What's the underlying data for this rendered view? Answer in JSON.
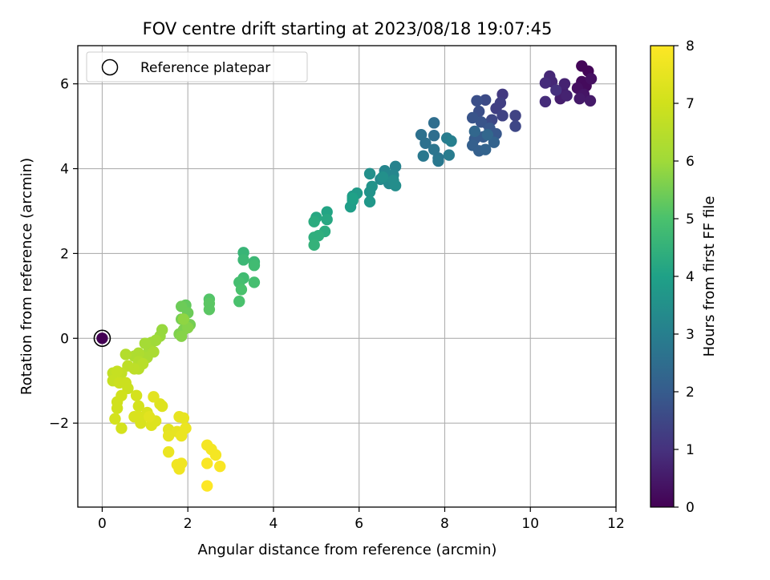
{
  "chart_data": {
    "type": "scatter",
    "title": "FOV centre drift starting at 2023/08/18 19:07:45",
    "xlabel": "Angular distance from reference (arcmin)",
    "ylabel": "Rotation from reference (arcmin)",
    "xlim": [
      -0.57,
      12
    ],
    "ylim": [
      -3.98,
      6.9
    ],
    "xticks": [
      0,
      2,
      4,
      6,
      8,
      10,
      12
    ],
    "yticks": [
      -2,
      0,
      2,
      4,
      6
    ],
    "ytick_labels": [
      "−2",
      "0",
      "2",
      "4",
      "6"
    ],
    "grid": true,
    "legend": {
      "position": "top-left",
      "entries": [
        "Reference platepar"
      ]
    },
    "colorbar": {
      "label": "Hours from first FF file",
      "min": 0,
      "max": 8,
      "ticks": [
        0,
        1,
        2,
        3,
        4,
        5,
        6,
        7,
        8
      ],
      "colormap": "viridis"
    },
    "reference_point": {
      "x": 0,
      "y": 0,
      "c": 0
    },
    "series": [
      {
        "values": [
          {
            "x": 11.2,
            "y": 6.42,
            "c": 0.1
          },
          {
            "x": 11.35,
            "y": 6.3,
            "c": 0.1
          },
          {
            "x": 11.2,
            "y": 6.05,
            "c": 0.2
          },
          {
            "x": 11.3,
            "y": 5.95,
            "c": 0.2
          },
          {
            "x": 11.42,
            "y": 6.12,
            "c": 0.3
          },
          {
            "x": 11.1,
            "y": 5.9,
            "c": 0.3
          },
          {
            "x": 11.25,
            "y": 5.75,
            "c": 0.4
          },
          {
            "x": 11.4,
            "y": 5.6,
            "c": 0.5
          },
          {
            "x": 11.15,
            "y": 5.65,
            "c": 0.5
          },
          {
            "x": 10.75,
            "y": 5.85,
            "c": 0.6
          },
          {
            "x": 10.7,
            "y": 5.65,
            "c": 0.6
          },
          {
            "x": 10.85,
            "y": 5.72,
            "c": 0.7
          },
          {
            "x": 10.8,
            "y": 6.0,
            "c": 0.7
          },
          {
            "x": 10.5,
            "y": 6.05,
            "c": 0.8
          },
          {
            "x": 10.45,
            "y": 6.18,
            "c": 0.8
          },
          {
            "x": 10.35,
            "y": 6.02,
            "c": 0.9
          },
          {
            "x": 10.35,
            "y": 5.58,
            "c": 0.9
          },
          {
            "x": 10.6,
            "y": 5.85,
            "c": 1.0
          },
          {
            "x": 9.35,
            "y": 5.75,
            "c": 1.2
          },
          {
            "x": 9.3,
            "y": 5.55,
            "c": 1.3
          },
          {
            "x": 9.2,
            "y": 5.42,
            "c": 1.3
          },
          {
            "x": 9.35,
            "y": 5.25,
            "c": 1.4
          },
          {
            "x": 9.65,
            "y": 5.25,
            "c": 1.4
          },
          {
            "x": 9.65,
            "y": 5.0,
            "c": 1.5
          },
          {
            "x": 9.1,
            "y": 5.15,
            "c": 1.5
          },
          {
            "x": 9.0,
            "y": 5.05,
            "c": 1.6
          },
          {
            "x": 8.95,
            "y": 5.62,
            "c": 1.6
          },
          {
            "x": 8.75,
            "y": 5.6,
            "c": 1.7
          },
          {
            "x": 8.8,
            "y": 5.35,
            "c": 1.7
          },
          {
            "x": 8.65,
            "y": 5.2,
            "c": 1.8
          },
          {
            "x": 8.85,
            "y": 5.1,
            "c": 1.8
          },
          {
            "x": 9.05,
            "y": 4.95,
            "c": 1.9
          },
          {
            "x": 9.2,
            "y": 4.82,
            "c": 1.9
          },
          {
            "x": 8.9,
            "y": 4.75,
            "c": 2.0
          },
          {
            "x": 8.7,
            "y": 4.7,
            "c": 2.0
          },
          {
            "x": 8.65,
            "y": 4.55,
            "c": 2.1
          },
          {
            "x": 8.8,
            "y": 4.42,
            "c": 2.1
          },
          {
            "x": 8.95,
            "y": 4.45,
            "c": 2.2
          },
          {
            "x": 9.15,
            "y": 4.62,
            "c": 2.2
          },
          {
            "x": 9.0,
            "y": 4.8,
            "c": 2.3
          },
          {
            "x": 8.7,
            "y": 4.88,
            "c": 2.3
          },
          {
            "x": 7.75,
            "y": 5.08,
            "c": 2.5
          },
          {
            "x": 7.75,
            "y": 4.78,
            "c": 2.5
          },
          {
            "x": 7.45,
            "y": 4.8,
            "c": 2.6
          },
          {
            "x": 7.55,
            "y": 4.6,
            "c": 2.6
          },
          {
            "x": 7.75,
            "y": 4.45,
            "c": 2.7
          },
          {
            "x": 7.85,
            "y": 4.25,
            "c": 2.7
          },
          {
            "x": 7.85,
            "y": 4.18,
            "c": 2.8
          },
          {
            "x": 7.5,
            "y": 4.3,
            "c": 2.8
          },
          {
            "x": 8.1,
            "y": 4.32,
            "c": 2.9
          },
          {
            "x": 8.05,
            "y": 4.72,
            "c": 2.9
          },
          {
            "x": 8.15,
            "y": 4.65,
            "c": 3.0
          },
          {
            "x": 6.85,
            "y": 4.05,
            "c": 3.1
          },
          {
            "x": 6.8,
            "y": 3.85,
            "c": 3.2
          },
          {
            "x": 6.6,
            "y": 3.95,
            "c": 3.2
          },
          {
            "x": 6.5,
            "y": 3.75,
            "c": 3.3
          },
          {
            "x": 6.7,
            "y": 3.65,
            "c": 3.3
          },
          {
            "x": 6.85,
            "y": 3.6,
            "c": 3.4
          },
          {
            "x": 6.8,
            "y": 3.72,
            "c": 3.4
          },
          {
            "x": 6.55,
            "y": 3.8,
            "c": 3.5
          },
          {
            "x": 6.25,
            "y": 3.88,
            "c": 3.5
          },
          {
            "x": 6.3,
            "y": 3.58,
            "c": 3.6
          },
          {
            "x": 6.25,
            "y": 3.45,
            "c": 3.6
          },
          {
            "x": 6.25,
            "y": 3.22,
            "c": 3.7
          },
          {
            "x": 5.95,
            "y": 3.42,
            "c": 3.8
          },
          {
            "x": 5.85,
            "y": 3.35,
            "c": 3.8
          },
          {
            "x": 5.85,
            "y": 3.25,
            "c": 3.9
          },
          {
            "x": 5.8,
            "y": 3.1,
            "c": 3.9
          },
          {
            "x": 5.85,
            "y": 3.3,
            "c": 4.0
          },
          {
            "x": 5.25,
            "y": 2.98,
            "c": 4.1
          },
          {
            "x": 5.25,
            "y": 2.8,
            "c": 4.2
          },
          {
            "x": 5.0,
            "y": 2.85,
            "c": 4.2
          },
          {
            "x": 4.95,
            "y": 2.75,
            "c": 4.3
          },
          {
            "x": 5.2,
            "y": 2.52,
            "c": 4.3
          },
          {
            "x": 5.05,
            "y": 2.42,
            "c": 4.4
          },
          {
            "x": 4.95,
            "y": 2.38,
            "c": 4.4
          },
          {
            "x": 4.95,
            "y": 2.2,
            "c": 4.5
          },
          {
            "x": 3.3,
            "y": 2.02,
            "c": 4.6
          },
          {
            "x": 3.3,
            "y": 1.85,
            "c": 4.7
          },
          {
            "x": 3.55,
            "y": 1.8,
            "c": 4.7
          },
          {
            "x": 3.55,
            "y": 1.72,
            "c": 4.8
          },
          {
            "x": 3.3,
            "y": 1.42,
            "c": 4.8
          },
          {
            "x": 3.2,
            "y": 1.32,
            "c": 4.9
          },
          {
            "x": 3.55,
            "y": 1.32,
            "c": 4.9
          },
          {
            "x": 3.25,
            "y": 1.15,
            "c": 5.0
          },
          {
            "x": 3.2,
            "y": 0.87,
            "c": 5.0
          },
          {
            "x": 2.5,
            "y": 0.92,
            "c": 5.1
          },
          {
            "x": 2.5,
            "y": 0.82,
            "c": 5.2
          },
          {
            "x": 2.5,
            "y": 0.68,
            "c": 5.2
          },
          {
            "x": 1.95,
            "y": 0.78,
            "c": 5.3
          },
          {
            "x": 1.85,
            "y": 0.75,
            "c": 5.4
          },
          {
            "x": 2.0,
            "y": 0.6,
            "c": 5.4
          },
          {
            "x": 1.85,
            "y": 0.45,
            "c": 5.5
          },
          {
            "x": 2.05,
            "y": 0.32,
            "c": 5.5
          },
          {
            "x": 1.9,
            "y": 0.2,
            "c": 5.6
          },
          {
            "x": 1.8,
            "y": 0.1,
            "c": 5.6
          },
          {
            "x": 1.85,
            "y": 0.05,
            "c": 5.7
          },
          {
            "x": 2.0,
            "y": 0.25,
            "c": 5.7
          },
          {
            "x": 1.9,
            "y": 0.45,
            "c": 5.8
          },
          {
            "x": 1.4,
            "y": 0.2,
            "c": 5.9
          },
          {
            "x": 1.35,
            "y": 0.05,
            "c": 5.9
          },
          {
            "x": 1.25,
            "y": -0.05,
            "c": 6.0
          },
          {
            "x": 1.15,
            "y": -0.1,
            "c": 6.0
          },
          {
            "x": 1.0,
            "y": -0.12,
            "c": 6.1
          },
          {
            "x": 1.1,
            "y": -0.28,
            "c": 6.1
          },
          {
            "x": 1.2,
            "y": -0.32,
            "c": 6.2
          },
          {
            "x": 1.05,
            "y": -0.45,
            "c": 6.2
          },
          {
            "x": 0.85,
            "y": -0.35,
            "c": 6.3
          },
          {
            "x": 0.75,
            "y": -0.42,
            "c": 6.3
          },
          {
            "x": 0.55,
            "y": -0.38,
            "c": 6.4
          },
          {
            "x": 0.85,
            "y": -0.55,
            "c": 6.4
          },
          {
            "x": 0.95,
            "y": -0.6,
            "c": 6.5
          },
          {
            "x": 0.85,
            "y": -0.72,
            "c": 6.5
          },
          {
            "x": 0.75,
            "y": -0.72,
            "c": 6.6
          },
          {
            "x": 0.6,
            "y": -0.65,
            "c": 6.6
          },
          {
            "x": 0.45,
            "y": -0.82,
            "c": 6.7
          },
          {
            "x": 0.25,
            "y": -0.82,
            "c": 6.7
          },
          {
            "x": 0.35,
            "y": -0.78,
            "c": 6.8
          },
          {
            "x": 0.25,
            "y": -1.0,
            "c": 6.8
          },
          {
            "x": 0.4,
            "y": -1.05,
            "c": 6.9
          },
          {
            "x": 0.55,
            "y": -1.05,
            "c": 6.9
          },
          {
            "x": 0.6,
            "y": -1.18,
            "c": 6.9
          },
          {
            "x": 0.45,
            "y": -1.35,
            "c": 7.0
          },
          {
            "x": 0.35,
            "y": -1.5,
            "c": 7.0
          },
          {
            "x": 0.35,
            "y": -1.65,
            "c": 7.0
          },
          {
            "x": 0.3,
            "y": -1.9,
            "c": 7.1
          },
          {
            "x": 0.45,
            "y": -2.12,
            "c": 7.1
          },
          {
            "x": 0.8,
            "y": -1.35,
            "c": 7.1
          },
          {
            "x": 0.85,
            "y": -1.6,
            "c": 7.1
          },
          {
            "x": 0.85,
            "y": -1.85,
            "c": 7.2
          },
          {
            "x": 0.75,
            "y": -1.85,
            "c": 7.2
          },
          {
            "x": 0.9,
            "y": -2.0,
            "c": 7.2
          },
          {
            "x": 1.05,
            "y": -1.75,
            "c": 7.2
          },
          {
            "x": 1.15,
            "y": -2.05,
            "c": 7.3
          },
          {
            "x": 1.25,
            "y": -1.95,
            "c": 7.3
          },
          {
            "x": 1.35,
            "y": -1.55,
            "c": 7.3
          },
          {
            "x": 1.4,
            "y": -1.6,
            "c": 7.3
          },
          {
            "x": 1.2,
            "y": -1.38,
            "c": 7.4
          },
          {
            "x": 1.1,
            "y": -1.85,
            "c": 7.4
          },
          {
            "x": 1.55,
            "y": -2.15,
            "c": 7.4
          },
          {
            "x": 1.55,
            "y": -2.3,
            "c": 7.5
          },
          {
            "x": 1.75,
            "y": -2.2,
            "c": 7.5
          },
          {
            "x": 1.8,
            "y": -1.85,
            "c": 7.5
          },
          {
            "x": 1.9,
            "y": -1.88,
            "c": 7.5
          },
          {
            "x": 1.95,
            "y": -2.12,
            "c": 7.6
          },
          {
            "x": 1.85,
            "y": -2.3,
            "c": 7.6
          },
          {
            "x": 1.55,
            "y": -2.68,
            "c": 7.6
          },
          {
            "x": 1.75,
            "y": -2.98,
            "c": 7.7
          },
          {
            "x": 1.85,
            "y": -2.95,
            "c": 7.7
          },
          {
            "x": 1.8,
            "y": -3.08,
            "c": 7.7
          },
          {
            "x": 2.45,
            "y": -2.52,
            "c": 7.8
          },
          {
            "x": 2.55,
            "y": -2.62,
            "c": 7.8
          },
          {
            "x": 2.65,
            "y": -2.75,
            "c": 7.8
          },
          {
            "x": 2.45,
            "y": -2.95,
            "c": 7.9
          },
          {
            "x": 2.75,
            "y": -3.02,
            "c": 7.9
          },
          {
            "x": 2.45,
            "y": -3.48,
            "c": 8.0
          }
        ]
      }
    ]
  }
}
